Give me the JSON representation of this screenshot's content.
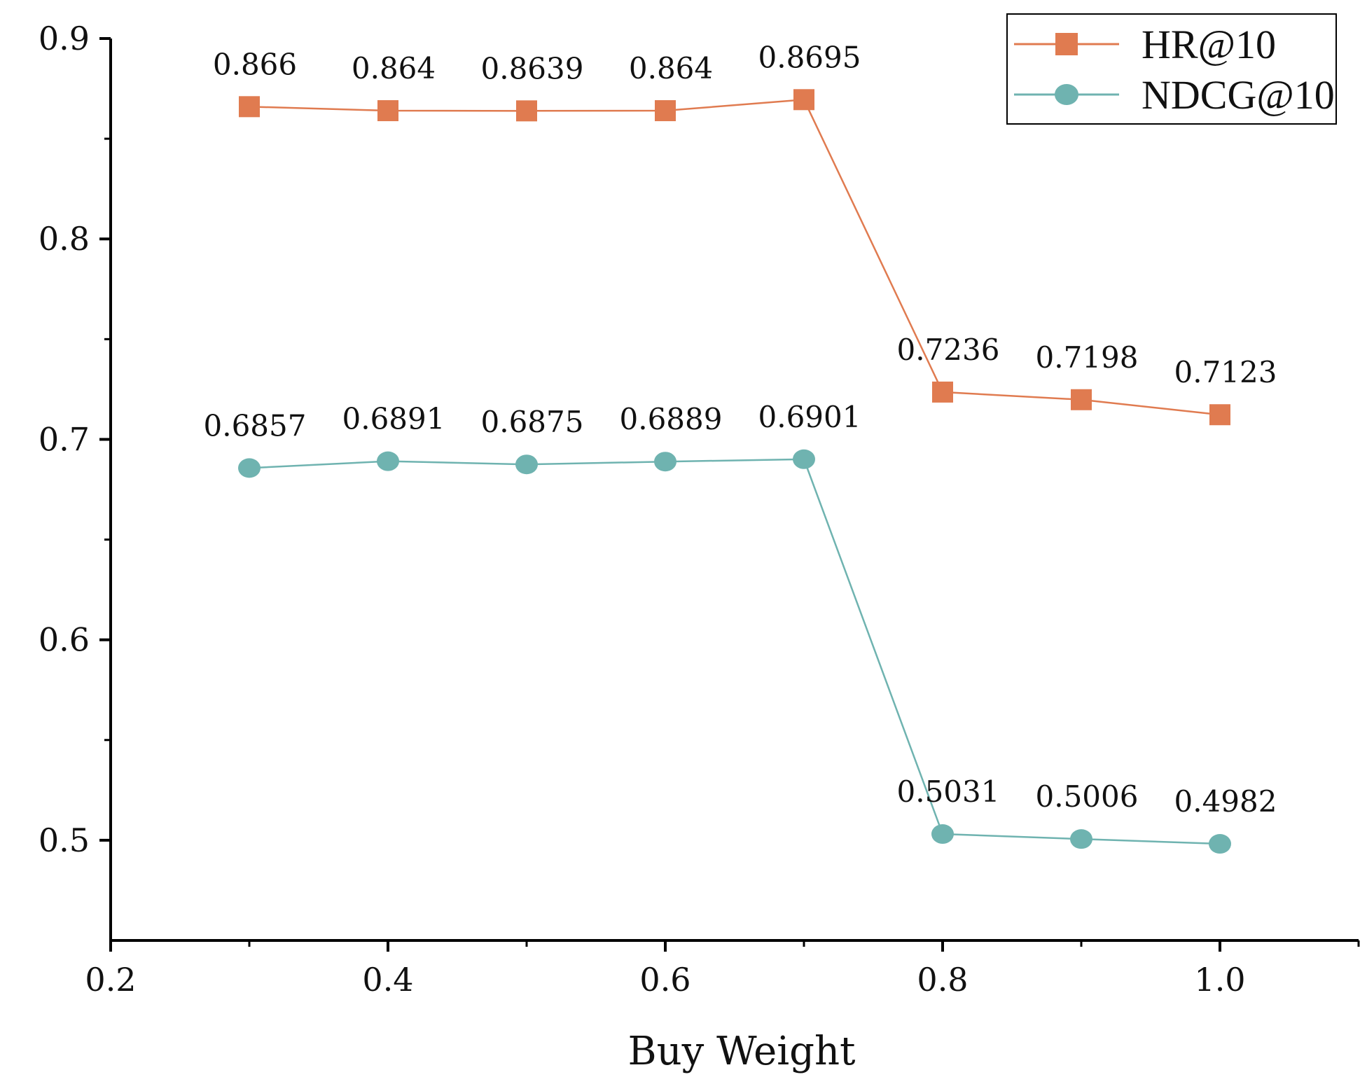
{
  "chart_data": {
    "type": "line",
    "title": "",
    "xlabel": "Buy Weight",
    "ylabel": "",
    "xlim": [
      0.2,
      1.1
    ],
    "ylim": [
      0.45,
      0.9
    ],
    "x_ticks": [
      "0.2",
      "0.4",
      "0.6",
      "0.8",
      "1.0"
    ],
    "y_ticks": [
      "0.5",
      "0.6",
      "0.7",
      "0.8",
      "0.9"
    ],
    "x": [
      0.3,
      0.4,
      0.5,
      0.6,
      0.7,
      0.8,
      0.9,
      1.0
    ],
    "legend_position": "top-right",
    "grid": false,
    "series": [
      {
        "name": "HR@10",
        "marker": "square",
        "color": "#E07B50",
        "values": [
          0.866,
          0.864,
          0.8639,
          0.864,
          0.8695,
          0.7236,
          0.7198,
          0.7123
        ],
        "labels": [
          "0.866",
          "0.864",
          "0.8639",
          "0.864",
          "0.8695",
          "0.7236",
          "0.7198",
          "0.7123"
        ]
      },
      {
        "name": "NDCG@10",
        "marker": "circle",
        "color": "#6FB3B0",
        "values": [
          0.6857,
          0.6891,
          0.6875,
          0.6889,
          0.6901,
          0.5031,
          0.5006,
          0.4982
        ],
        "labels": [
          "0.6857",
          "0.6891",
          "0.6875",
          "0.6889",
          "0.6901",
          "0.5031",
          "0.5006",
          "0.4982"
        ]
      }
    ]
  }
}
